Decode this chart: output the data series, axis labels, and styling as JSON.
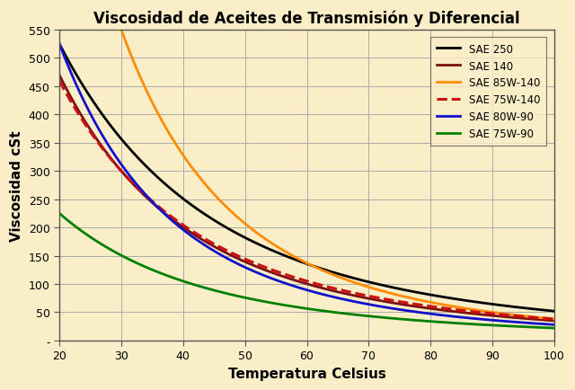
{
  "title": "Viscosidad de Aceites de Transmisión y Diferencial",
  "xlabel": "Temperatura Celsius",
  "ylabel": "Viscosidad cSt",
  "bg_color": "#faeec8",
  "grid_color": "#aaaaaa",
  "xlim": [
    20,
    100
  ],
  "ylim": [
    0,
    550
  ],
  "yticks": [
    0,
    50,
    100,
    150,
    200,
    250,
    300,
    350,
    400,
    450,
    500,
    550
  ],
  "xticks": [
    20,
    30,
    40,
    50,
    60,
    70,
    80,
    90,
    100
  ],
  "series": [
    {
      "label": "SAE 250",
      "color": "#000000",
      "linestyle": "-",
      "linewidth": 2.0,
      "T1": 20,
      "v1": 525,
      "T2": 100,
      "v2": 52
    },
    {
      "label": "SAE 140",
      "color": "#7B1010",
      "linestyle": "-",
      "linewidth": 2.0,
      "T1": 30,
      "v1": 300,
      "T2": 100,
      "v2": 35
    },
    {
      "label": "SAE 85W-140",
      "color": "#FF8C00",
      "linestyle": "-",
      "linewidth": 2.0,
      "T1": 30,
      "v1": 550,
      "T2": 100,
      "v2": 38
    },
    {
      "label": "SAE 75W-140",
      "color": "#CC1111",
      "linestyle": "--",
      "linewidth": 2.2,
      "T1": 30,
      "v1": 300,
      "T2": 100,
      "v2": 38
    },
    {
      "label": "SAE 80W-90",
      "color": "#1111CC",
      "linestyle": "-",
      "linewidth": 2.0,
      "T1": 20,
      "v1": 525,
      "T2": 100,
      "v2": 28
    },
    {
      "label": "SAE 75W-90",
      "color": "#008000",
      "linestyle": "-",
      "linewidth": 2.0,
      "T1": 20,
      "v1": 225,
      "T2": 100,
      "v2": 22
    }
  ]
}
